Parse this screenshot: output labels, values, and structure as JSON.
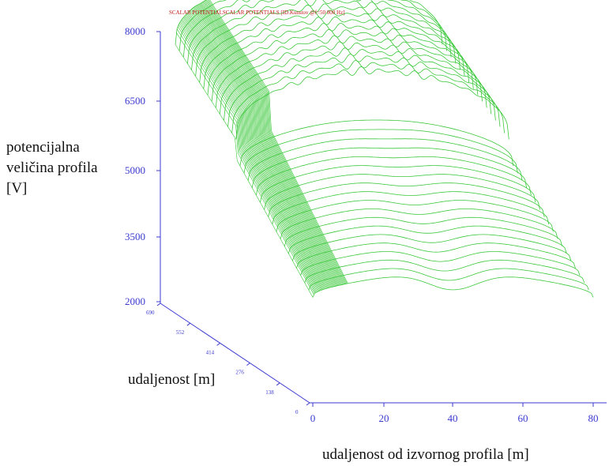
{
  "chart_data": {
    "type": "surface-3d",
    "title": "SCALAR POTENTIALSCALAR POTENTIALS [ID.Kunstov @f=50 000 Hz]",
    "zlabel": [
      "potencijalna",
      "veličina profila",
      "[V]"
    ],
    "ylabel": "udaljenost [m]",
    "xlabel": "udaljenost od izvornog profila [m]",
    "z_ticks": [
      "8000",
      "6500",
      "5000",
      "3500",
      "2000"
    ],
    "x_ticks": [
      "0",
      "20",
      "40",
      "60",
      "80"
    ],
    "y_ticks": [
      "690",
      "552",
      "414",
      "276",
      "138",
      "0"
    ],
    "zlim": [
      2000,
      8000
    ],
    "xlim": [
      0,
      80
    ],
    "ylim": [
      0,
      690
    ],
    "line_color": "#3cc83c",
    "axis_color": "#3a3ad0"
  }
}
